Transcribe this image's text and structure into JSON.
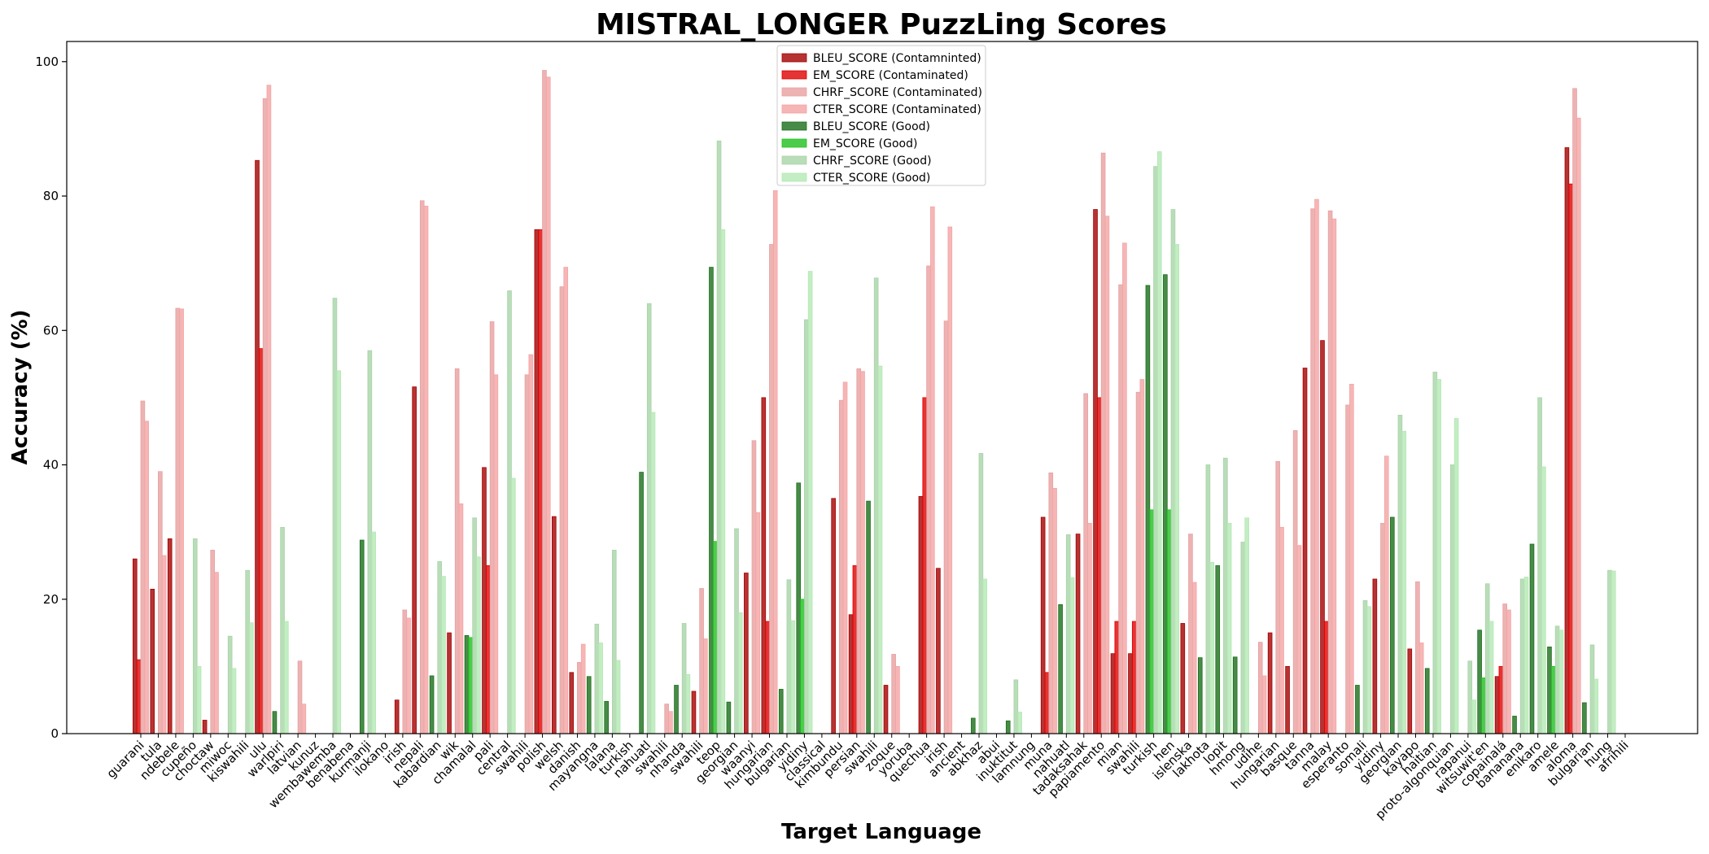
{
  "chart_data": {
    "type": "bar",
    "title": "MISTRAL_LONGER PuzzLing Scores",
    "xlabel": "Target Language",
    "ylabel": "Accuracy (%)",
    "ylim": [
      0,
      103
    ],
    "yticks": [
      0,
      20,
      40,
      60,
      80,
      100
    ],
    "legend_position": "top-center",
    "series": [
      {
        "name": "BLEU_SCORE (Contamninted)",
        "color": "#a40000",
        "fill_alpha": 0.8
      },
      {
        "name": "EM_SCORE (Contaminated)",
        "color": "#e00000",
        "fill_alpha": 0.8
      },
      {
        "name": "CHRF_SCORE (Contaminated)",
        "color": "#e8a0a0",
        "fill_alpha": 0.8
      },
      {
        "name": "CTER_SCORE (Contaminated)",
        "color": "#f4a4a4",
        "fill_alpha": 0.8
      },
      {
        "name": "BLEU_SCORE (Good)",
        "color": "#1a6e1a",
        "fill_alpha": 0.8
      },
      {
        "name": "EM_SCORE (Good)",
        "color": "#1ec01e",
        "fill_alpha": 0.8
      },
      {
        "name": "CHRF_SCORE (Good)",
        "color": "#a8d4a8",
        "fill_alpha": 0.8
      },
      {
        "name": "CTER_SCORE (Good)",
        "color": "#b4e8b4",
        "fill_alpha": 0.8
      }
    ],
    "categories": [
      {
        "label": "guarani",
        "group": "contaminated",
        "values": [
          26,
          11,
          49.5,
          46.5
        ]
      },
      {
        "label": "tula",
        "group": "contaminated",
        "values": [
          21.5,
          0,
          39,
          26.5
        ]
      },
      {
        "label": "ndebele",
        "group": "contaminated",
        "values": [
          29,
          0,
          63.3,
          63.2
        ]
      },
      {
        "label": "cupeño",
        "group": "good",
        "values": [
          0,
          0,
          29,
          10
        ]
      },
      {
        "label": "choctaw",
        "group": "contaminated",
        "values": [
          2,
          0,
          27.3,
          24
        ]
      },
      {
        "label": "miwoc",
        "group": "good",
        "values": [
          0,
          0,
          14.5,
          9.7
        ]
      },
      {
        "label": "kiswahili",
        "group": "good",
        "values": [
          0,
          0,
          24.3,
          16.5
        ]
      },
      {
        "label": "ulu",
        "group": "contaminated",
        "values": [
          85.3,
          57.3,
          94.5,
          96.5
        ]
      },
      {
        "label": "warlpiri",
        "group": "good",
        "values": [
          3.3,
          0,
          30.7,
          16.7
        ]
      },
      {
        "label": "latvian",
        "group": "contaminated",
        "values": [
          0,
          0,
          10.8,
          4.4
        ]
      },
      {
        "label": "kunuz",
        "group": "good",
        "values": [
          0,
          0,
          0,
          0
        ]
      },
      {
        "label": "wembawemba",
        "group": "good",
        "values": [
          0,
          0,
          64.8,
          54
        ]
      },
      {
        "label": "benabena",
        "group": "good",
        "values": [
          0,
          0,
          0,
          0
        ]
      },
      {
        "label": "kurmanji",
        "group": "good",
        "values": [
          28.8,
          0,
          57,
          30
        ]
      },
      {
        "label": "ilokano",
        "group": "good",
        "values": [
          0,
          0,
          0,
          0
        ]
      },
      {
        "label": "irish",
        "group": "contaminated",
        "values": [
          5,
          0,
          18.4,
          17.2
        ]
      },
      {
        "label": "nepali",
        "group": "contaminated",
        "values": [
          51.6,
          0,
          79.3,
          78.5
        ]
      },
      {
        "label": "kabardian",
        "group": "good",
        "values": [
          8.6,
          0,
          25.6,
          23.4
        ]
      },
      {
        "label": "wik",
        "group": "contaminated",
        "values": [
          15,
          0,
          54.3,
          34.2
        ]
      },
      {
        "label": "chamalal",
        "group": "good",
        "values": [
          14.6,
          14.3,
          32.1,
          26.3
        ]
      },
      {
        "label": "pali",
        "group": "contaminated",
        "values": [
          39.6,
          25,
          61.3,
          53.4
        ]
      },
      {
        "label": "central",
        "group": "good",
        "values": [
          0,
          0,
          65.9,
          38
        ]
      },
      {
        "label": "swahili",
        "group": "contaminated",
        "values": [
          0,
          0,
          53.4,
          56.4
        ]
      },
      {
        "label": "polish",
        "group": "contaminated",
        "values": [
          75,
          75,
          98.7,
          97.7
        ]
      },
      {
        "label": "welsh",
        "group": "contaminated",
        "values": [
          32.3,
          0,
          66.5,
          69.4
        ]
      },
      {
        "label": "danish",
        "group": "contaminated",
        "values": [
          9.1,
          0,
          10.6,
          13.3
        ]
      },
      {
        "label": "mayangna",
        "group": "good",
        "values": [
          8.5,
          0,
          16.3,
          13.5
        ]
      },
      {
        "label": "lalana",
        "group": "good",
        "values": [
          4.8,
          0,
          27.3,
          10.9
        ]
      },
      {
        "label": "turkish",
        "group": "good",
        "values": [
          0,
          0,
          0,
          0
        ]
      },
      {
        "label": "nahuatl",
        "group": "good",
        "values": [
          38.9,
          0,
          64,
          47.8
        ]
      },
      {
        "label": "swahili",
        "group": "contaminated",
        "values": [
          0,
          0,
          4.4,
          3.3
        ]
      },
      {
        "label": "nhanda",
        "group": "good",
        "values": [
          7.2,
          0,
          16.4,
          8.8
        ]
      },
      {
        "label": "swahili",
        "group": "contaminated",
        "values": [
          6.3,
          0,
          21.6,
          14.1
        ]
      },
      {
        "label": "teop",
        "group": "good",
        "values": [
          69.4,
          28.6,
          88.2,
          75
        ]
      },
      {
        "label": "georgian",
        "group": "good",
        "values": [
          4.7,
          0,
          30.5,
          18
        ]
      },
      {
        "label": "waanyi",
        "group": "contaminated",
        "values": [
          23.9,
          0,
          43.6,
          32.9
        ]
      },
      {
        "label": "hungarian",
        "group": "contaminated",
        "values": [
          50,
          16.7,
          72.8,
          80.8
        ]
      },
      {
        "label": "bulgarian",
        "group": "good",
        "values": [
          6.6,
          0,
          22.9,
          16.8
        ]
      },
      {
        "label": "yidiny",
        "group": "good",
        "values": [
          37.3,
          20,
          61.6,
          68.8
        ]
      },
      {
        "label": "classical",
        "group": "good",
        "values": [
          0,
          0,
          0,
          0
        ]
      },
      {
        "label": "kimbundu",
        "group": "contaminated",
        "values": [
          35,
          0,
          49.6,
          52.3
        ]
      },
      {
        "label": "persian",
        "group": "contaminated",
        "values": [
          17.7,
          25,
          54.3,
          53.9
        ]
      },
      {
        "label": "swahili",
        "group": "good",
        "values": [
          34.6,
          0,
          67.8,
          54.7
        ]
      },
      {
        "label": "zoque",
        "group": "contaminated",
        "values": [
          7.2,
          0,
          11.8,
          10
        ]
      },
      {
        "label": "yoruba",
        "group": "good",
        "values": [
          0,
          0,
          0,
          0
        ]
      },
      {
        "label": "quechua",
        "group": "contaminated",
        "values": [
          35.3,
          50,
          69.6,
          78.4
        ]
      },
      {
        "label": "irish",
        "group": "contaminated",
        "values": [
          24.6,
          0,
          61.4,
          75.4
        ]
      },
      {
        "label": "ancient",
        "group": "good",
        "values": [
          0,
          0,
          0,
          0
        ]
      },
      {
        "label": "abkhaz",
        "group": "good",
        "values": [
          2.3,
          0,
          41.7,
          23
        ]
      },
      {
        "label": "abui",
        "group": "good",
        "values": [
          0,
          0,
          0,
          0
        ]
      },
      {
        "label": "inuktitut",
        "group": "good",
        "values": [
          1.9,
          0,
          8,
          3.2
        ]
      },
      {
        "label": "lamnung",
        "group": "good",
        "values": [
          0,
          0,
          0,
          0
        ]
      },
      {
        "label": "muna",
        "group": "contaminated",
        "values": [
          32.2,
          9.1,
          38.8,
          36.5
        ]
      },
      {
        "label": "nahuatl",
        "group": "good",
        "values": [
          19.2,
          0,
          29.6,
          23.2
        ]
      },
      {
        "label": "tadaksahak",
        "group": "contaminated",
        "values": [
          29.7,
          0,
          50.6,
          31.3
        ]
      },
      {
        "label": "papiamento",
        "group": "contaminated",
        "values": [
          78,
          50,
          86.4,
          77
        ]
      },
      {
        "label": "mian",
        "group": "contaminated",
        "values": [
          11.9,
          16.7,
          66.8,
          73
        ]
      },
      {
        "label": "swahili",
        "group": "contaminated",
        "values": [
          11.9,
          16.7,
          50.8,
          52.7
        ]
      },
      {
        "label": "turkish",
        "group": "good",
        "values": [
          66.7,
          33.3,
          84.4,
          86.6
        ]
      },
      {
        "label": "hen",
        "group": "good",
        "values": [
          68.3,
          33.3,
          78,
          72.8
        ]
      },
      {
        "label": "islenska",
        "group": "contaminated",
        "values": [
          16.4,
          0,
          29.7,
          22.5
        ]
      },
      {
        "label": "lakhota",
        "group": "good",
        "values": [
          11.3,
          0,
          40,
          25.5
        ]
      },
      {
        "label": "lopit",
        "group": "good",
        "values": [
          25,
          0,
          41,
          31.3
        ]
      },
      {
        "label": "hmong",
        "group": "good",
        "values": [
          11.4,
          0,
          28.5,
          32.1
        ]
      },
      {
        "label": "udihe",
        "group": "contaminated",
        "values": [
          0,
          0,
          13.6,
          8.6
        ]
      },
      {
        "label": "hungarian",
        "group": "contaminated",
        "values": [
          15,
          0,
          40.5,
          30.7
        ]
      },
      {
        "label": "basque",
        "group": "contaminated",
        "values": [
          10,
          0,
          45.1,
          28
        ]
      },
      {
        "label": "tanna",
        "group": "contaminated",
        "values": [
          54.4,
          0,
          78.1,
          79.5
        ]
      },
      {
        "label": "malay",
        "group": "contaminated",
        "values": [
          58.5,
          16.7,
          77.8,
          76.6
        ]
      },
      {
        "label": "esperanto",
        "group": "contaminated",
        "values": [
          0,
          0,
          48.9,
          52
        ]
      },
      {
        "label": "somali",
        "group": "good",
        "values": [
          7.2,
          0,
          19.8,
          18.9
        ]
      },
      {
        "label": "yidiny",
        "group": "contaminated",
        "values": [
          23,
          0,
          31.3,
          41.3
        ]
      },
      {
        "label": "georgian",
        "group": "good",
        "values": [
          32.2,
          0,
          47.4,
          45
        ]
      },
      {
        "label": "kayapo",
        "group": "contaminated",
        "values": [
          12.6,
          0,
          22.6,
          13.5
        ]
      },
      {
        "label": "haitian",
        "group": "good",
        "values": [
          9.7,
          0,
          53.8,
          52.7
        ]
      },
      {
        "label": "proto-algonquian",
        "group": "good",
        "values": [
          0,
          0,
          40,
          46.9
        ]
      },
      {
        "label": "rapanui",
        "group": "good",
        "values": [
          0,
          0,
          10.8,
          5
        ]
      },
      {
        "label": "witsuwit'en",
        "group": "good",
        "values": [
          15.4,
          8.3,
          22.3,
          16.7
        ]
      },
      {
        "label": "copainalá",
        "group": "contaminated",
        "values": [
          8.5,
          10,
          19.3,
          18.4
        ]
      },
      {
        "label": "bananana",
        "group": "good",
        "values": [
          2.6,
          0,
          23,
          23.3
        ]
      },
      {
        "label": "enikaro",
        "group": "good",
        "values": [
          28.2,
          0,
          50,
          39.7
        ]
      },
      {
        "label": "amele",
        "group": "good",
        "values": [
          12.9,
          10,
          16,
          15.4
        ]
      },
      {
        "label": "aloma",
        "group": "contaminated",
        "values": [
          87.2,
          81.8,
          96,
          91.6
        ]
      },
      {
        "label": "bulgarian",
        "group": "good",
        "values": [
          4.6,
          0,
          13.2,
          8.1
        ]
      },
      {
        "label": "hung",
        "group": "good",
        "values": [
          0,
          0,
          24.3,
          24.2
        ]
      },
      {
        "label": "afrihili",
        "group": "good",
        "values": [
          0,
          0,
          0,
          0
        ]
      }
    ]
  }
}
